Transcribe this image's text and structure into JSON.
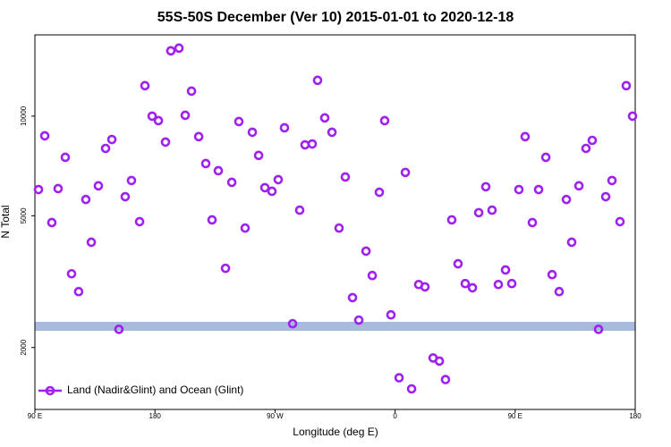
{
  "chart_data": {
    "type": "scatter",
    "title": "55S-50S December (Ver 10)   2015-01-01 to 2020-12-18",
    "x_label": "Longitude (deg E)",
    "y_label": "N Total",
    "log_y": true,
    "xlim": [
      90,
      540
    ],
    "ylim": [
      1300,
      17600
    ],
    "xticks": [
      {
        "value": 90,
        "label": "90 E"
      },
      {
        "value": 180,
        "label": "180"
      },
      {
        "value": 270,
        "label": "90 W"
      },
      {
        "value": 360,
        "label": "0"
      },
      {
        "value": 450,
        "label": "90 E"
      },
      {
        "value": 540,
        "label": "180"
      }
    ],
    "yticks": [
      2000,
      5000,
      10000
    ],
    "legend_position": "lower left",
    "series": [
      {
        "name": "Land (Nadir&Glint) and Ocean (Glint)",
        "color": "#a020f0",
        "x": [
          92.7,
          97.4,
          102.7,
          107.4,
          112.8,
          117.5,
          122.8,
          128.2,
          132.3,
          137.6,
          143.0,
          147.7,
          153.0,
          157.7,
          162.4,
          168.5,
          172.5,
          177.9,
          182.6,
          187.9,
          191.9,
          198.0,
          202.7,
          207.4,
          212.8,
          218.1,
          222.8,
          227.5,
          232.9,
          237.6,
          242.9,
          247.6,
          253.0,
          257.7,
          262.4,
          267.7,
          272.4,
          277.1,
          283.2,
          288.5,
          292.5,
          297.9,
          301.9,
          307.3,
          312.7,
          318.0,
          322.7,
          328.1,
          332.8,
          338.2,
          342.9,
          348.2,
          352.2,
          356.9,
          363.0,
          367.7,
          372.4,
          377.7,
          382.4,
          388.5,
          393.2,
          397.8,
          402.5,
          407.2,
          412.6,
          418.0,
          422.7,
          428.0,
          432.7,
          437.4,
          442.8,
          447.5,
          452.8,
          457.5,
          462.9,
          467.6,
          473.0,
          477.7,
          483.0,
          488.4,
          492.4,
          497.8,
          503.1,
          507.8,
          512.5,
          517.9,
          522.6,
          528.6,
          533.3,
          538.0
        ],
        "values": [
          6000,
          8720,
          4770,
          6040,
          7510,
          3340,
          2950,
          5600,
          4160,
          6160,
          7990,
          8500,
          2270,
          5710,
          6390,
          4800,
          12360,
          10000,
          9690,
          8350,
          15750,
          16050,
          10060,
          11900,
          8670,
          7190,
          4860,
          6840,
          3470,
          6310,
          9630,
          4590,
          8940,
          7610,
          6080,
          5930,
          6430,
          9220,
          2360,
          5200,
          8190,
          8240,
          12830,
          9880,
          8940,
          4590,
          6550,
          2830,
          2420,
          3910,
          3300,
          5890,
          9690,
          2510,
          1620,
          6760,
          1500,
          3100,
          3050,
          1860,
          1820,
          1600,
          4860,
          3580,
          3120,
          3030,
          5110,
          6120,
          5200,
          3100,
          3430,
          3120,
          6000,
          8670,
          4770,
          6000,
          7510,
          3320,
          2950,
          5600,
          4160,
          6160,
          7990,
          8450,
          2270,
          5710,
          6390,
          4800,
          12360,
          10000
        ]
      }
    ]
  }
}
